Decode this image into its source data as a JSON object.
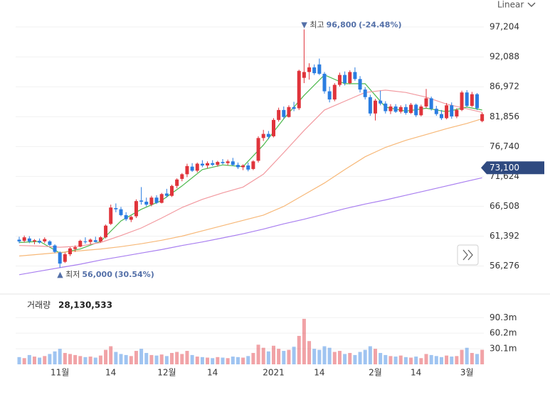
{
  "chart_data": {
    "type": "candlestick",
    "scale_mode": "Linear",
    "ylim": [
      53800,
      99400
    ],
    "yticks": [
      {
        "value": 56276,
        "label": "56,276"
      },
      {
        "value": 61392,
        "label": "61,392"
      },
      {
        "value": 66508,
        "label": "66,508"
      },
      {
        "value": 71624,
        "label": "71,624"
      },
      {
        "value": 76740,
        "label": "76,740"
      },
      {
        "value": 81856,
        "label": "81,856"
      },
      {
        "value": 86972,
        "label": "86,972"
      },
      {
        "value": 92088,
        "label": "92,088"
      },
      {
        "value": 97204,
        "label": "97,204"
      }
    ],
    "grid": true,
    "up_color": "#e0343b",
    "down_color": "#2a7de1",
    "categories": [
      null,
      null,
      null,
      null,
      null,
      null,
      null,
      null,
      "11월",
      null,
      null,
      null,
      null,
      null,
      null,
      null,
      null,
      null,
      "14",
      null,
      null,
      null,
      null,
      null,
      null,
      null,
      null,
      null,
      null,
      "12월",
      null,
      null,
      null,
      null,
      null,
      null,
      null,
      null,
      "14",
      null,
      null,
      null,
      null,
      null,
      null,
      null,
      null,
      null,
      null,
      null,
      "2021",
      null,
      null,
      null,
      null,
      null,
      null,
      null,
      null,
      "14",
      null,
      null,
      null,
      null,
      null,
      null,
      null,
      null,
      null,
      null,
      "2월",
      null,
      null,
      null,
      null,
      null,
      null,
      null,
      "14",
      null,
      null,
      null,
      null,
      null,
      null,
      null,
      null,
      null,
      "3월",
      null,
      null,
      null
    ],
    "candles": [
      [
        60800,
        61300,
        60200,
        60500
      ],
      [
        60600,
        61500,
        60300,
        61200
      ],
      [
        61000,
        61400,
        60200,
        60500
      ],
      [
        60500,
        60900,
        60000,
        60700
      ],
      [
        60600,
        61000,
        60100,
        60300
      ],
      [
        60500,
        61200,
        60200,
        60900
      ],
      [
        60500,
        60700,
        59700,
        59900
      ],
      [
        59800,
        60000,
        58500,
        58700
      ],
      [
        58600,
        58800,
        56000,
        56700
      ],
      [
        57000,
        58600,
        56800,
        58300
      ],
      [
        58300,
        59500,
        58000,
        59300
      ],
      [
        59200,
        59800,
        58700,
        59500
      ],
      [
        59600,
        60800,
        59500,
        60600
      ],
      [
        60500,
        61200,
        60100,
        60400
      ],
      [
        60400,
        61000,
        60000,
        60800
      ],
      [
        60700,
        61300,
        60300,
        60400
      ],
      [
        60500,
        61400,
        60300,
        61200
      ],
      [
        61200,
        63400,
        61000,
        63200
      ],
      [
        63500,
        66800,
        63300,
        66300
      ],
      [
        66200,
        67000,
        65500,
        66000
      ],
      [
        66000,
        66400,
        64800,
        65000
      ],
      [
        65000,
        65500,
        64000,
        64300
      ],
      [
        64200,
        64900,
        63800,
        64700
      ],
      [
        64800,
        67700,
        64500,
        67400
      ],
      [
        67500,
        69800,
        66800,
        67300
      ],
      [
        67300,
        68000,
        66500,
        66800
      ],
      [
        66800,
        68300,
        66500,
        68000
      ],
      [
        68000,
        68400,
        66900,
        67100
      ],
      [
        67100,
        68800,
        67000,
        68600
      ],
      [
        68700,
        69500,
        68000,
        68300
      ],
      [
        68300,
        70200,
        68100,
        70000
      ],
      [
        70000,
        71300,
        69600,
        71100
      ],
      [
        71200,
        72200,
        70800,
        72000
      ],
      [
        72000,
        73800,
        71500,
        73400
      ],
      [
        73300,
        73900,
        72400,
        72600
      ],
      [
        72600,
        74000,
        72300,
        73800
      ],
      [
        73800,
        74400,
        73200,
        73500
      ],
      [
        73500,
        74200,
        73000,
        73900
      ],
      [
        73900,
        74400,
        73400,
        73600
      ],
      [
        73600,
        74300,
        73300,
        74100
      ],
      [
        74100,
        74600,
        73700,
        73900
      ],
      [
        73900,
        74500,
        73500,
        74200
      ],
      [
        74200,
        74800,
        73400,
        73600
      ],
      [
        73600,
        74000,
        72900,
        73200
      ],
      [
        73200,
        73700,
        72700,
        73500
      ],
      [
        73500,
        74000,
        72500,
        72800
      ],
      [
        72900,
        74400,
        72700,
        74200
      ],
      [
        74300,
        78500,
        74000,
        78200
      ],
      [
        78200,
        79600,
        77700,
        78900
      ],
      [
        78900,
        79400,
        78000,
        78400
      ],
      [
        78500,
        81600,
        78300,
        81300
      ],
      [
        81300,
        83400,
        81000,
        83000
      ],
      [
        83000,
        83600,
        81500,
        81800
      ],
      [
        81800,
        83800,
        81700,
        83500
      ],
      [
        83500,
        84400,
        82800,
        83200
      ],
      [
        83300,
        89900,
        83000,
        89700
      ],
      [
        88500,
        96800,
        87600,
        89500
      ],
      [
        89500,
        91000,
        88200,
        90300
      ],
      [
        90300,
        90800,
        89000,
        89300
      ],
      [
        90800,
        91800,
        89000,
        89200
      ],
      [
        89200,
        89500,
        85800,
        86200
      ],
      [
        86200,
        87000,
        84300,
        84800
      ],
      [
        84800,
        87600,
        84500,
        87300
      ],
      [
        87300,
        89400,
        87000,
        89000
      ],
      [
        89000,
        89600,
        87200,
        87600
      ],
      [
        87600,
        89800,
        87400,
        89500
      ],
      [
        89500,
        90300,
        88000,
        88300
      ],
      [
        88300,
        88800,
        86000,
        86500
      ],
      [
        86500,
        86900,
        84800,
        85200
      ],
      [
        85200,
        85600,
        82000,
        82400
      ],
      [
        82400,
        84900,
        81200,
        84600
      ],
      [
        84600,
        86300,
        83800,
        84100
      ],
      [
        84100,
        84500,
        82400,
        82800
      ],
      [
        82800,
        84000,
        82300,
        83600
      ],
      [
        83600,
        84000,
        82500,
        82700
      ],
      [
        82700,
        83800,
        82400,
        83500
      ],
      [
        83500,
        84000,
        82200,
        82500
      ],
      [
        82500,
        84200,
        82300,
        83900
      ],
      [
        83900,
        84100,
        81800,
        82100
      ],
      [
        82100,
        83900,
        81900,
        83600
      ],
      [
        83600,
        86600,
        83300,
        85000
      ],
      [
        85000,
        85300,
        82900,
        83200
      ],
      [
        83200,
        83700,
        82000,
        82300
      ],
      [
        82300,
        83000,
        81300,
        81600
      ],
      [
        81600,
        84200,
        81400,
        83800
      ],
      [
        83800,
        84300,
        81500,
        81900
      ],
      [
        81900,
        83300,
        81600,
        83000
      ],
      [
        83000,
        86300,
        82800,
        86000
      ],
      [
        86000,
        86400,
        83500,
        83700
      ],
      [
        83700,
        86100,
        83500,
        85700
      ],
      [
        85700,
        85900,
        83000,
        83300
      ],
      [
        81100,
        82600,
        80900,
        82300
      ]
    ],
    "ma_x": [
      0,
      4,
      8,
      12,
      16,
      20,
      24,
      28,
      32,
      36,
      40,
      44,
      48,
      52,
      56,
      60,
      64,
      68,
      72,
      76,
      80,
      84,
      88,
      91
    ],
    "ma_lines": [
      {
        "color": "#4cb84c",
        "values": [
          60300,
          60500,
          58500,
          59200,
          60500,
          64000,
          66000,
          67500,
          70000,
          72800,
          73600,
          73300,
          77000,
          81500,
          85500,
          89000,
          87500,
          87500,
          83500,
          82800,
          83300,
          82700,
          83500,
          83000
        ]
      },
      {
        "color": "#f2999f",
        "values": [
          59800,
          59700,
          59500,
          59700,
          60300,
          61500,
          62800,
          64500,
          66300,
          67700,
          68800,
          69800,
          72000,
          75700,
          79500,
          83000,
          84500,
          86000,
          86400,
          86000,
          85200,
          84000,
          83200,
          82600
        ]
      },
      {
        "color": "#f7b878",
        "values": [
          58000,
          58300,
          58600,
          58900,
          59200,
          59600,
          60100,
          60700,
          61400,
          62300,
          63200,
          64100,
          65000,
          66500,
          68500,
          70500,
          72800,
          75000,
          76600,
          77800,
          78800,
          79800,
          80700,
          81500
        ]
      },
      {
        "color": "#a97ff0",
        "values": [
          54800,
          55400,
          56000,
          56600,
          57300,
          57900,
          58500,
          59100,
          59800,
          60400,
          61100,
          61800,
          62600,
          63500,
          64300,
          65200,
          66100,
          66900,
          67600,
          68400,
          69200,
          70000,
          70800,
          71400
        ]
      }
    ],
    "high_annotation": {
      "label": "최고",
      "value": 96800,
      "value_label": "96,800",
      "change": "(-24.48%)"
    },
    "low_annotation": {
      "label": "최저",
      "value": 56000,
      "value_label": "56,000",
      "change": "(30.54%)"
    },
    "price_marker": {
      "value": 73100,
      "label": "73,100"
    },
    "volume_title": "거래량",
    "volume_last_label": "28,130,533",
    "volume_ylim": [
      0,
      114000000
    ],
    "volume_yticks": [
      {
        "value": 30100000,
        "label": "30.1m"
      },
      {
        "value": 60200000,
        "label": "60.2m"
      },
      {
        "value": 90300000,
        "label": "90.3m"
      }
    ],
    "volumes": [
      14000000,
      12000000,
      18000000,
      15000000,
      13000000,
      16000000,
      20000000,
      25000000,
      30000000,
      22000000,
      20000000,
      18000000,
      16000000,
      14000000,
      15000000,
      13000000,
      17000000,
      28000000,
      35000000,
      24000000,
      20000000,
      18000000,
      16000000,
      26000000,
      30000000,
      22000000,
      18000000,
      17000000,
      19000000,
      16000000,
      22000000,
      24000000,
      20000000,
      26000000,
      18000000,
      15000000,
      14000000,
      13000000,
      12000000,
      14000000,
      13000000,
      12000000,
      15000000,
      14000000,
      13000000,
      16000000,
      22000000,
      38000000,
      32000000,
      25000000,
      36000000,
      30000000,
      26000000,
      28000000,
      34000000,
      55000000,
      88000000,
      45000000,
      30000000,
      28000000,
      35000000,
      32000000,
      24000000,
      26000000,
      20000000,
      22000000,
      18000000,
      24000000,
      28000000,
      35000000,
      30000000,
      22000000,
      18000000,
      16000000,
      15000000,
      17000000,
      14000000,
      13000000,
      15000000,
      12000000,
      20000000,
      18000000,
      16000000,
      14000000,
      17000000,
      15000000,
      16000000,
      28000000,
      32000000,
      22000000,
      20000000,
      28130533
    ]
  }
}
